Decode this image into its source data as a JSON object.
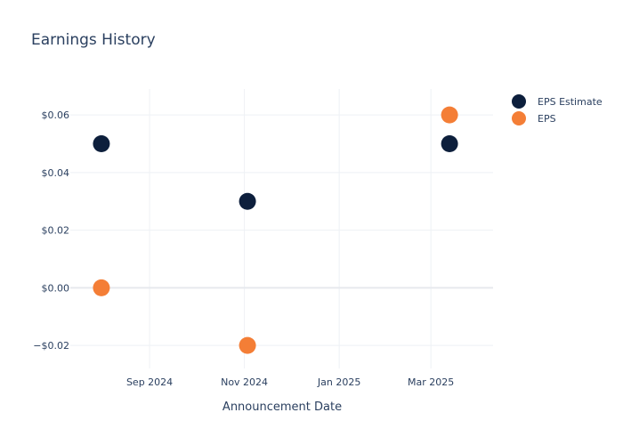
{
  "chart_data": {
    "type": "scatter",
    "title": "Earnings History",
    "xlabel": "Announcement Date",
    "ylabel": "",
    "x_type": "date",
    "xlim": [
      "2024-07-12",
      "2025-04-10"
    ],
    "ylim": [
      -0.028,
      0.069
    ],
    "x_ticks": [
      {
        "value": "2024-09-01",
        "label": "Sep 2024"
      },
      {
        "value": "2024-11-01",
        "label": "Nov 2024"
      },
      {
        "value": "2025-01-01",
        "label": "Jan 2025"
      },
      {
        "value": "2025-03-01",
        "label": "Mar 2025"
      }
    ],
    "y_ticks": [
      {
        "value": -0.02,
        "label": "−$0.02"
      },
      {
        "value": 0.0,
        "label": "$0.00"
      },
      {
        "value": 0.02,
        "label": "$0.02"
      },
      {
        "value": 0.04,
        "label": "$0.04"
      },
      {
        "value": 0.06,
        "label": "$0.06"
      }
    ],
    "grid": true,
    "legend_position": "right",
    "series": [
      {
        "name": "EPS Estimate",
        "color": "#0d1f3c",
        "x": [
          "2024-08-01",
          "2024-11-03",
          "2025-03-13"
        ],
        "y": [
          0.05,
          0.03,
          0.05
        ]
      },
      {
        "name": "EPS",
        "color": "#f47e36",
        "x": [
          "2024-08-01",
          "2024-11-03",
          "2025-03-13"
        ],
        "y": [
          0.0,
          -0.02,
          0.06
        ]
      }
    ]
  }
}
